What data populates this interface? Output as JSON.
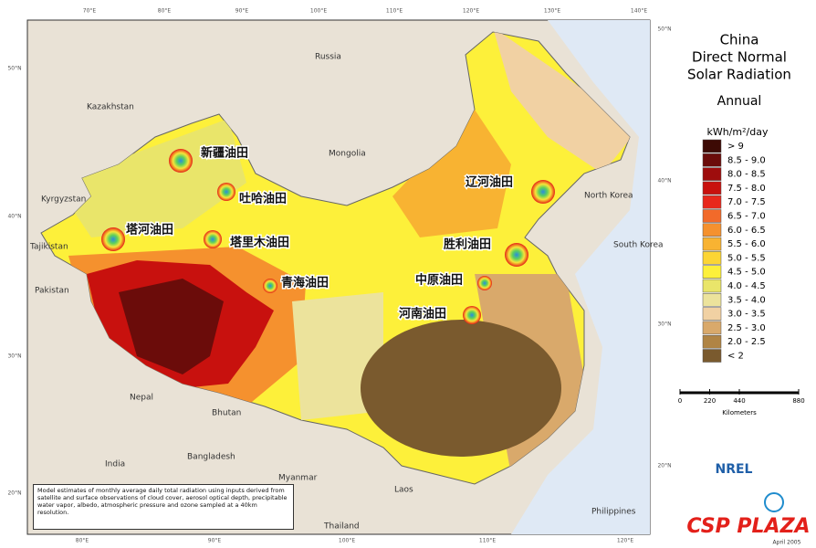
{
  "map": {
    "title_lines": [
      "China",
      "Direct Normal",
      "Solar Radiation"
    ],
    "period": "Annual",
    "unit": "kWh/m²/day",
    "legend": [
      {
        "label": "> 9",
        "color": "#3d0a05"
      },
      {
        "label": "8.5 - 9.0",
        "color": "#6b0c0a"
      },
      {
        "label": "8.0 - 8.5",
        "color": "#9e0d0d"
      },
      {
        "label": "7.5 - 8.0",
        "color": "#c8110e"
      },
      {
        "label": "7.0 - 7.5",
        "color": "#e8281c"
      },
      {
        "label": "6.5 - 7.0",
        "color": "#f26a2a"
      },
      {
        "label": "6.0 - 6.5",
        "color": "#f5912e"
      },
      {
        "label": "5.5 - 6.0",
        "color": "#f8b332"
      },
      {
        "label": "5.0 - 5.5",
        "color": "#fcd534"
      },
      {
        "label": "4.5 - 5.0",
        "color": "#fdf03a"
      },
      {
        "label": "4.0 - 4.5",
        "color": "#e9e56a"
      },
      {
        "label": "3.5 - 4.0",
        "color": "#ece39c"
      },
      {
        "label": "3.0 - 3.5",
        "color": "#f1d1a3"
      },
      {
        "label": "2.5 - 3.0",
        "color": "#d9a96b"
      },
      {
        "label": "2.0 - 2.5",
        "color": "#b08444"
      },
      {
        "label": "< 2",
        "color": "#7a5a2e"
      }
    ],
    "scale": {
      "ticks": [
        0,
        220,
        440,
        880
      ],
      "unit": "Kilometers"
    },
    "oil_fields": [
      "新疆油田",
      "吐哈油田",
      "塔河油田",
      "塔里木油田",
      "青海油田",
      "辽河油田",
      "胜利油田",
      "中原油田",
      "河南油田"
    ],
    "countries": [
      "Russia",
      "Kazakhstan",
      "Mongolia",
      "Kyrgyzstan",
      "Tajikistan",
      "Pakistan",
      "Nepal",
      "Bhutan",
      "India",
      "Bangladesh",
      "Myanmar",
      "Thailand",
      "Laos",
      "North Korea",
      "South Korea",
      "Philippines"
    ],
    "top_longitudes": [
      "70°E",
      "80°E",
      "90°E",
      "100°E",
      "110°E",
      "120°E",
      "130°E",
      "140°E"
    ],
    "bottom_longitudes": [
      "80°E",
      "90°E",
      "100°E",
      "110°E",
      "120°E"
    ],
    "left_latitudes": [
      "50°N",
      "40°N",
      "30°N",
      "20°N"
    ],
    "right_latitudes": [
      "50°N",
      "40°N",
      "30°N",
      "20°N"
    ],
    "note": "Model estimates of monthly average daily total radiation using inputs derived from satellite and surface observations of cloud cover, aerosol optical depth, precipitable water vapor, albedo, atmospheric pressure and ozone sampled at a 40km resolution.",
    "logo": "NREL",
    "watermark": "CSP PLAZA",
    "date": "April 2005"
  }
}
